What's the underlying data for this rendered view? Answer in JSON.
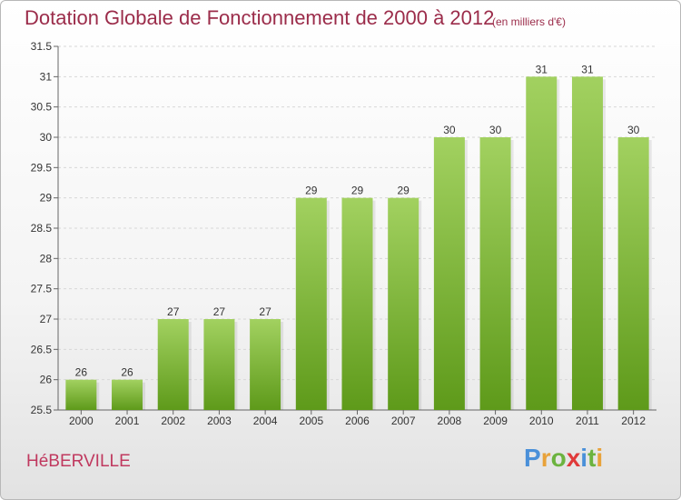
{
  "header": {
    "title": "Dotation Globale de Fonctionnement de 2000 à 2012",
    "subtitle": "(en milliers d'€)"
  },
  "footer": {
    "commune": "HéBERVILLE",
    "logo_letters": [
      "P",
      "r",
      "o",
      "x",
      "i",
      "t",
      "i"
    ],
    "logo_colors": [
      "#4a90d9",
      "#e8a23a",
      "#6cb33f",
      "#e03a3a",
      "#4a90d9",
      "#6cb33f",
      "#e8a23a"
    ]
  },
  "chart_data": {
    "type": "bar",
    "title": "Dotation Globale de Fonctionnement de 2000 à 2012",
    "subtitle": "(en milliers d'€)",
    "categories": [
      "2000",
      "2001",
      "2002",
      "2003",
      "2004",
      "2005",
      "2006",
      "2007",
      "2008",
      "2009",
      "2010",
      "2011",
      "2012"
    ],
    "values": [
      26,
      26,
      27,
      27,
      27,
      29,
      29,
      29,
      30,
      30,
      31,
      31,
      30
    ],
    "labels": [
      "26",
      "26",
      "27",
      "27",
      "27",
      "29",
      "29",
      "29",
      "30",
      "30",
      "31",
      "31",
      "30"
    ],
    "ylim": [
      25.5,
      31.5
    ],
    "yticks": [
      "25.5",
      "26",
      "26.5",
      "27",
      "27.5",
      "28",
      "28.5",
      "29",
      "29.5",
      "30",
      "30.5",
      "31",
      "31.5"
    ],
    "grid": true,
    "bar_color": "#7dbb2e",
    "xlabel": "",
    "ylabel": ""
  }
}
